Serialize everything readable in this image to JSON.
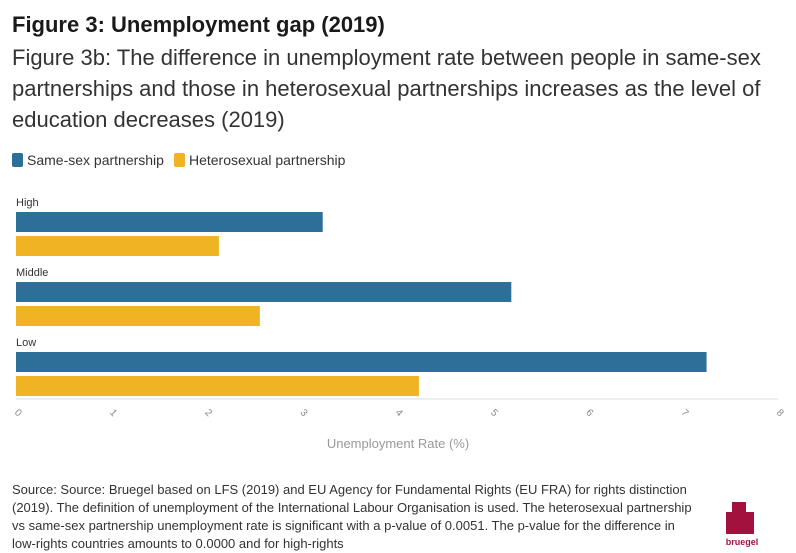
{
  "header": {
    "title": "Figure 3: Unemployment gap (2019)",
    "subtitle": "Figure 3b: The difference in unemployment rate between people in same-sex partnerships and those in heterosexual partnerships increases as the level of education decreases (2019)"
  },
  "colors": {
    "same_sex": "#2e6f99",
    "heterosexual": "#f0b323",
    "logo": "#a3123f"
  },
  "chart_data": {
    "type": "bar",
    "orientation": "horizontal",
    "categories": [
      "High",
      "Middle",
      "Low"
    ],
    "series": [
      {
        "name": "Same-sex partnership",
        "values": [
          3.22,
          5.2,
          7.25
        ]
      },
      {
        "name": "Heterosexual partnership",
        "values": [
          2.13,
          2.56,
          4.23
        ]
      }
    ],
    "xlabel": "Unemployment Rate (%)",
    "ylabel": "",
    "xlim": [
      0,
      8
    ],
    "xticks": [
      "0",
      "1",
      "2",
      "3",
      "4",
      "5",
      "6",
      "7",
      "8"
    ],
    "grid": false,
    "legend": "top-left"
  },
  "source": {
    "text": "Source: Source: Bruegel based on LFS (2019) and EU Agency for Fundamental Rights (EU FRA) for rights distinction (2019). The definition of unemployment of the International Labour Organisation is used. The heterosexual partnership vs same-sex partnership unemployment rate is significant with a p-value of 0.0051. The p-value for the difference in low-rights countries amounts to 0.0000 and for high-rights"
  },
  "logo": {
    "text": "bruegel"
  }
}
